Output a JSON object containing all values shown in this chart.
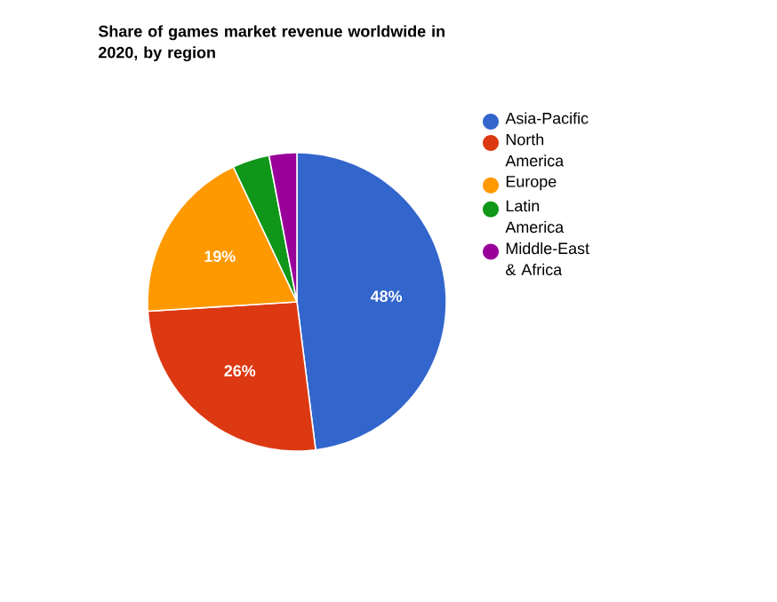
{
  "chart_data": {
    "type": "pie",
    "title": "Share of games market revenue worldwide in 2020, by region",
    "categories": [
      "Asia-Pacific",
      "North America",
      "Europe",
      "Latin America",
      "Middle-East & Africa"
    ],
    "values": [
      48,
      26,
      19,
      4,
      3
    ],
    "colors": [
      "#3366cc",
      "#dc3912",
      "#ff9900",
      "#109618",
      "#990099"
    ],
    "value_labels": [
      "48%",
      "26%",
      "19%",
      null,
      null
    ],
    "legend": "right"
  }
}
